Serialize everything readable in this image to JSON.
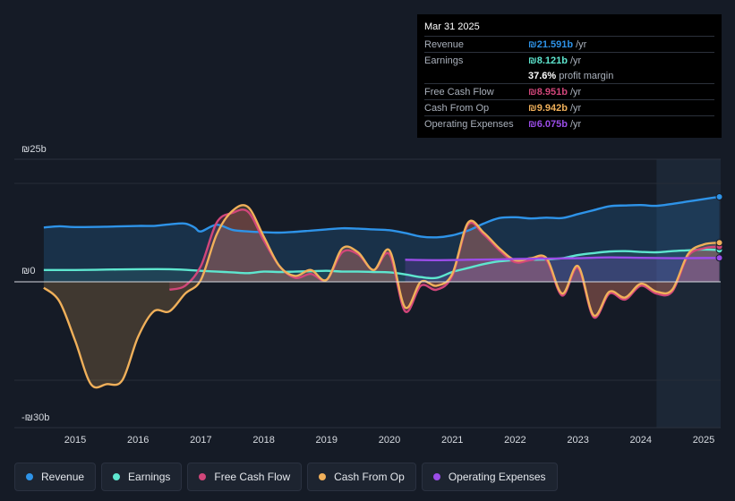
{
  "tooltip": {
    "date": "Mar 31 2025",
    "rows": [
      {
        "label": "Revenue",
        "value": "₪21.591b",
        "unit": "/yr",
        "color": "#2e93e8"
      },
      {
        "label": "Earnings",
        "value": "₪8.121b",
        "unit": "/yr",
        "color": "#5ee6cf"
      },
      {
        "label": "",
        "value": "37.6%",
        "unit": "profit margin",
        "color": "#ffffff"
      },
      {
        "label": "Free Cash Flow",
        "value": "₪8.951b",
        "unit": "/yr",
        "color": "#d1467a"
      },
      {
        "label": "Cash From Op",
        "value": "₪9.942b",
        "unit": "/yr",
        "color": "#f0b05a"
      },
      {
        "label": "Operating Expenses",
        "value": "₪6.075b",
        "unit": "/yr",
        "color": "#9b4de8"
      }
    ]
  },
  "legend": [
    {
      "label": "Revenue",
      "color": "#2e93e8"
    },
    {
      "label": "Earnings",
      "color": "#5ee6cf"
    },
    {
      "label": "Free Cash Flow",
      "color": "#d1467a"
    },
    {
      "label": "Cash From Op",
      "color": "#f0b05a"
    },
    {
      "label": "Operating Expenses",
      "color": "#9b4de8"
    }
  ],
  "chart_data": {
    "type": "line",
    "title": "",
    "ylabel_top": "₪25b",
    "ylabel_zero": "₪0",
    "ylabel_bottom": "-₪30b",
    "ylim": [
      -30,
      25
    ],
    "xlim": [
      2014.5,
      2025.27
    ],
    "x_ticks": [
      "2015",
      "2016",
      "2017",
      "2018",
      "2019",
      "2020",
      "2021",
      "2022",
      "2023",
      "2024",
      "2025"
    ],
    "highlight_from": 2024.25,
    "series": [
      {
        "name": "Revenue",
        "color": "#2e93e8",
        "points": [
          [
            2014.5,
            13.8
          ],
          [
            2014.75,
            14.1
          ],
          [
            2015,
            13.9
          ],
          [
            2015.5,
            14.0
          ],
          [
            2016,
            14.2
          ],
          [
            2016.25,
            14.2
          ],
          [
            2016.5,
            14.6
          ],
          [
            2016.75,
            14.8
          ],
          [
            2016.9,
            13.8
          ],
          [
            2017,
            12.8
          ],
          [
            2017.25,
            14.5
          ],
          [
            2017.5,
            13.2
          ],
          [
            2017.75,
            12.8
          ],
          [
            2018,
            12.6
          ],
          [
            2018.25,
            12.5
          ],
          [
            2018.5,
            12.7
          ],
          [
            2018.75,
            13.0
          ],
          [
            2019,
            13.3
          ],
          [
            2019.25,
            13.6
          ],
          [
            2019.5,
            13.5
          ],
          [
            2019.75,
            13.3
          ],
          [
            2020,
            13.1
          ],
          [
            2020.25,
            12.4
          ],
          [
            2020.5,
            11.5
          ],
          [
            2020.75,
            11.3
          ],
          [
            2021,
            11.8
          ],
          [
            2021.25,
            13.0
          ],
          [
            2021.5,
            14.8
          ],
          [
            2021.75,
            16.2
          ],
          [
            2022,
            16.4
          ],
          [
            2022.25,
            16.1
          ],
          [
            2022.5,
            16.3
          ],
          [
            2022.75,
            16.2
          ],
          [
            2023,
            17.2
          ],
          [
            2023.25,
            18.2
          ],
          [
            2023.5,
            19.2
          ],
          [
            2023.75,
            19.4
          ],
          [
            2024,
            19.5
          ],
          [
            2024.25,
            19.3
          ],
          [
            2024.5,
            19.8
          ],
          [
            2024.75,
            20.4
          ],
          [
            2025,
            21.0
          ],
          [
            2025.25,
            21.6
          ]
        ]
      },
      {
        "name": "Earnings",
        "color": "#5ee6cf",
        "points": [
          [
            2014.5,
            3.0
          ],
          [
            2015,
            3.0
          ],
          [
            2015.5,
            3.1
          ],
          [
            2016,
            3.2
          ],
          [
            2016.5,
            3.2
          ],
          [
            2016.8,
            3.0
          ],
          [
            2017,
            2.8
          ],
          [
            2017.25,
            2.6
          ],
          [
            2017.5,
            2.4
          ],
          [
            2017.75,
            2.2
          ],
          [
            2018,
            2.6
          ],
          [
            2018.25,
            2.5
          ],
          [
            2018.5,
            2.6
          ],
          [
            2018.75,
            2.7
          ],
          [
            2019,
            2.8
          ],
          [
            2019.25,
            2.6
          ],
          [
            2019.5,
            2.6
          ],
          [
            2019.75,
            2.5
          ],
          [
            2020,
            2.4
          ],
          [
            2020.25,
            1.9
          ],
          [
            2020.5,
            1.2
          ],
          [
            2020.75,
            1.0
          ],
          [
            2021,
            2.5
          ],
          [
            2021.25,
            3.5
          ],
          [
            2021.5,
            4.5
          ],
          [
            2021.75,
            5.2
          ],
          [
            2022,
            5.5
          ],
          [
            2022.25,
            5.6
          ],
          [
            2022.5,
            5.7
          ],
          [
            2022.75,
            6.0
          ],
          [
            2023,
            6.8
          ],
          [
            2023.25,
            7.3
          ],
          [
            2023.5,
            7.7
          ],
          [
            2023.75,
            7.8
          ],
          [
            2024,
            7.6
          ],
          [
            2024.25,
            7.5
          ],
          [
            2024.5,
            7.8
          ],
          [
            2024.75,
            8.0
          ],
          [
            2025,
            8.2
          ],
          [
            2025.25,
            8.1
          ]
        ]
      },
      {
        "name": "Free Cash Flow",
        "color": "#d1467a",
        "points": [
          [
            2016.5,
            -2.0
          ],
          [
            2016.75,
            -1.0
          ],
          [
            2017,
            4.0
          ],
          [
            2017.25,
            15.0
          ],
          [
            2017.5,
            17.5
          ],
          [
            2017.75,
            17.8
          ],
          [
            2018,
            10.5
          ],
          [
            2018.25,
            4.0
          ],
          [
            2018.5,
            1.0
          ],
          [
            2018.75,
            2.0
          ],
          [
            2019,
            0.5
          ],
          [
            2019.25,
            7.5
          ],
          [
            2019.5,
            7.0
          ],
          [
            2019.75,
            3.0
          ],
          [
            2020,
            7.0
          ],
          [
            2020.25,
            -7.5
          ],
          [
            2020.5,
            -1.0
          ],
          [
            2020.75,
            -2.0
          ],
          [
            2021,
            1.5
          ],
          [
            2021.25,
            14.5
          ],
          [
            2021.5,
            12.0
          ],
          [
            2021.75,
            8.0
          ],
          [
            2022,
            5.0
          ],
          [
            2022.25,
            5.5
          ],
          [
            2022.5,
            5.5
          ],
          [
            2022.75,
            -3.5
          ],
          [
            2023,
            3.5
          ],
          [
            2023.25,
            -9.0
          ],
          [
            2023.5,
            -3.0
          ],
          [
            2023.75,
            -4.5
          ],
          [
            2024,
            -1.0
          ],
          [
            2024.25,
            -3.0
          ],
          [
            2024.5,
            -2.5
          ],
          [
            2024.75,
            6.5
          ],
          [
            2025,
            8.5
          ],
          [
            2025.25,
            8.95
          ]
        ]
      },
      {
        "name": "Cash From Op",
        "color": "#f0b05a",
        "points": [
          [
            2014.5,
            -1.5
          ],
          [
            2014.75,
            -5.0
          ],
          [
            2015,
            -15.0
          ],
          [
            2015.25,
            -26.0
          ],
          [
            2015.5,
            -26.0
          ],
          [
            2015.75,
            -25.0
          ],
          [
            2016,
            -14.0
          ],
          [
            2016.25,
            -7.5
          ],
          [
            2016.5,
            -7.5
          ],
          [
            2016.75,
            -3.0
          ],
          [
            2017,
            0.5
          ],
          [
            2017.25,
            12.0
          ],
          [
            2017.5,
            18.0
          ],
          [
            2017.75,
            19.0
          ],
          [
            2018,
            11.5
          ],
          [
            2018.25,
            4.0
          ],
          [
            2018.5,
            1.5
          ],
          [
            2018.75,
            3.0
          ],
          [
            2019,
            0.5
          ],
          [
            2019.25,
            8.5
          ],
          [
            2019.5,
            7.5
          ],
          [
            2019.75,
            3.0
          ],
          [
            2020,
            8.0
          ],
          [
            2020.25,
            -6.5
          ],
          [
            2020.5,
            0.0
          ],
          [
            2020.75,
            -1.0
          ],
          [
            2021,
            2.0
          ],
          [
            2021.25,
            15.0
          ],
          [
            2021.5,
            12.5
          ],
          [
            2021.75,
            8.5
          ],
          [
            2022,
            5.5
          ],
          [
            2022.25,
            6.0
          ],
          [
            2022.5,
            6.0
          ],
          [
            2022.75,
            -3.0
          ],
          [
            2023,
            4.0
          ],
          [
            2023.25,
            -8.5
          ],
          [
            2023.5,
            -2.5
          ],
          [
            2023.75,
            -4.0
          ],
          [
            2024,
            -0.5
          ],
          [
            2024.25,
            -2.5
          ],
          [
            2024.5,
            -2.0
          ],
          [
            2024.75,
            7.0
          ],
          [
            2025,
            9.5
          ],
          [
            2025.25,
            9.94
          ]
        ]
      },
      {
        "name": "Operating Expenses",
        "color": "#9b4de8",
        "points": [
          [
            2020.25,
            5.6
          ],
          [
            2020.75,
            5.5
          ],
          [
            2021.25,
            5.6
          ],
          [
            2021.75,
            5.7
          ],
          [
            2022,
            5.8
          ],
          [
            2022.5,
            5.9
          ],
          [
            2023,
            6.0
          ],
          [
            2023.5,
            6.2
          ],
          [
            2024,
            6.1
          ],
          [
            2024.5,
            6.0
          ],
          [
            2025,
            6.05
          ],
          [
            2025.25,
            6.075
          ]
        ]
      }
    ]
  }
}
